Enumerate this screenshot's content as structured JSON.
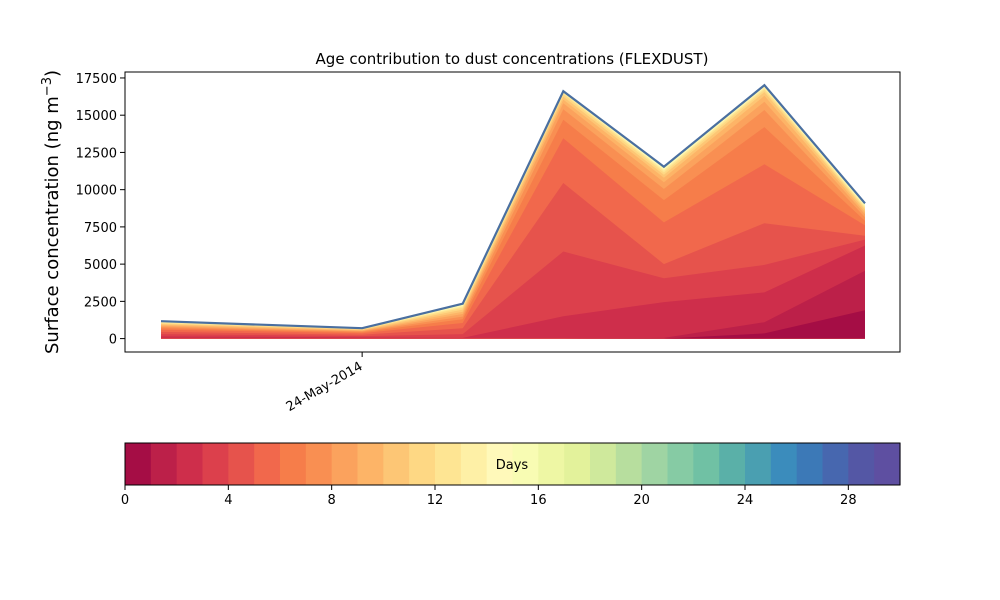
{
  "chart_data": [
    {
      "type": "area",
      "stacked": true,
      "title": "Age contribution to dust concentrations (FLEXDUST)",
      "ylabel": "Surface concentration (ng m",
      "ylabel_sup": "−3",
      "ylabel_close": ")",
      "xlabel": "",
      "x_tick_labels": [
        "24-May-2014"
      ],
      "x_tick_index": 2,
      "ylim": [
        -900,
        17900
      ],
      "y_ticks": [
        0,
        2500,
        5000,
        7500,
        10000,
        12500,
        15000,
        17500
      ],
      "grid": false,
      "total_line_color": "#4a6fa0",
      "series_by_age_day": [
        [
          0,
          0,
          0,
          0,
          0,
          0,
          350,
          1900
        ],
        [
          0,
          0,
          0,
          0,
          0,
          50,
          1100,
          4550
        ],
        [
          150,
          120,
          80,
          50,
          1500,
          2450,
          3100,
          6250
        ],
        [
          300,
          240,
          170,
          300,
          5850,
          4050,
          4950,
          6650
        ],
        [
          450,
          360,
          260,
          700,
          10450,
          5000,
          7750,
          6900
        ],
        [
          600,
          480,
          360,
          1050,
          13450,
          7800,
          11700,
          7600
        ],
        [
          700,
          560,
          430,
          1300,
          14700,
          9300,
          14200,
          7900
        ],
        [
          780,
          620,
          480,
          1480,
          15400,
          10050,
          15350,
          8150
        ],
        [
          850,
          680,
          520,
          1650,
          15800,
          10500,
          15900,
          8350
        ],
        [
          920,
          740,
          560,
          1800,
          16050,
          10800,
          16300,
          8500
        ],
        [
          980,
          790,
          600,
          1950,
          16250,
          11000,
          16550,
          8650
        ],
        [
          1030,
          830,
          630,
          2060,
          16400,
          11150,
          16700,
          8750
        ],
        [
          1070,
          860,
          650,
          2140,
          16480,
          11270,
          16800,
          8830
        ],
        [
          1100,
          880,
          665,
          2200,
          16530,
          11350,
          16870,
          8900
        ],
        [
          1120,
          895,
          675,
          2240,
          16560,
          11400,
          16910,
          8950
        ],
        [
          1130,
          905,
          680,
          2270,
          16580,
          11440,
          16940,
          8985
        ],
        [
          1140,
          912,
          684,
          2290,
          16590,
          11470,
          16960,
          9010
        ],
        [
          1147,
          917,
          686,
          2305,
          16596,
          11490,
          16975,
          9030
        ],
        [
          1152,
          921,
          688,
          2315,
          16600,
          11505,
          16985,
          9045
        ],
        [
          1156,
          924,
          690,
          2322,
          16603,
          11515,
          16992,
          9055
        ],
        [
          1159,
          926,
          691,
          2327,
          16605,
          11522,
          16997,
          9062
        ],
        [
          1161,
          928,
          692,
          2331,
          16607,
          11527,
          17001,
          9067
        ],
        [
          1163,
          929,
          693,
          2334,
          16608,
          11531,
          17004,
          9071
        ],
        [
          1164,
          930,
          693,
          2336,
          16609,
          11534,
          17006,
          9074
        ],
        [
          1165,
          931,
          694,
          2338,
          16610,
          11536,
          17008,
          9076
        ],
        [
          1166,
          931,
          694,
          2339,
          16610,
          11538,
          17009,
          9078
        ],
        [
          1167,
          932,
          694,
          2340,
          16611,
          11539,
          17010,
          9079
        ],
        [
          1167,
          932,
          695,
          2341,
          16611,
          11540,
          17011,
          9080
        ],
        [
          1168,
          933,
          695,
          2342,
          16612,
          11541,
          17011,
          9081
        ],
        [
          1168,
          933,
          695,
          2342,
          16612,
          11541,
          17012,
          9082
        ]
      ]
    },
    {
      "type": "colorbar",
      "label": "Days",
      "range": [
        0,
        30
      ],
      "ticks": [
        0,
        4,
        8,
        12,
        16,
        20,
        24,
        28
      ],
      "colors": [
        "#a50d45",
        "#bc2049",
        "#ce2e4b",
        "#dc404c",
        "#e6534c",
        "#f1684c",
        "#f67d4a",
        "#f98f52",
        "#fba25d",
        "#fdb467",
        "#fdc675",
        "#fed884",
        "#fee593",
        "#fef0a6",
        "#fff9ba",
        "#f8fcb3",
        "#eef7a4",
        "#e3f29b",
        "#cfe99c",
        "#b7de9e",
        "#9fd4a3",
        "#86cba4",
        "#70c1a4",
        "#5ab0a8",
        "#4a9fb1",
        "#3b8cbc",
        "#3c79b7",
        "#4767af",
        "#5457a5",
        "#5e4fa1"
      ]
    }
  ]
}
